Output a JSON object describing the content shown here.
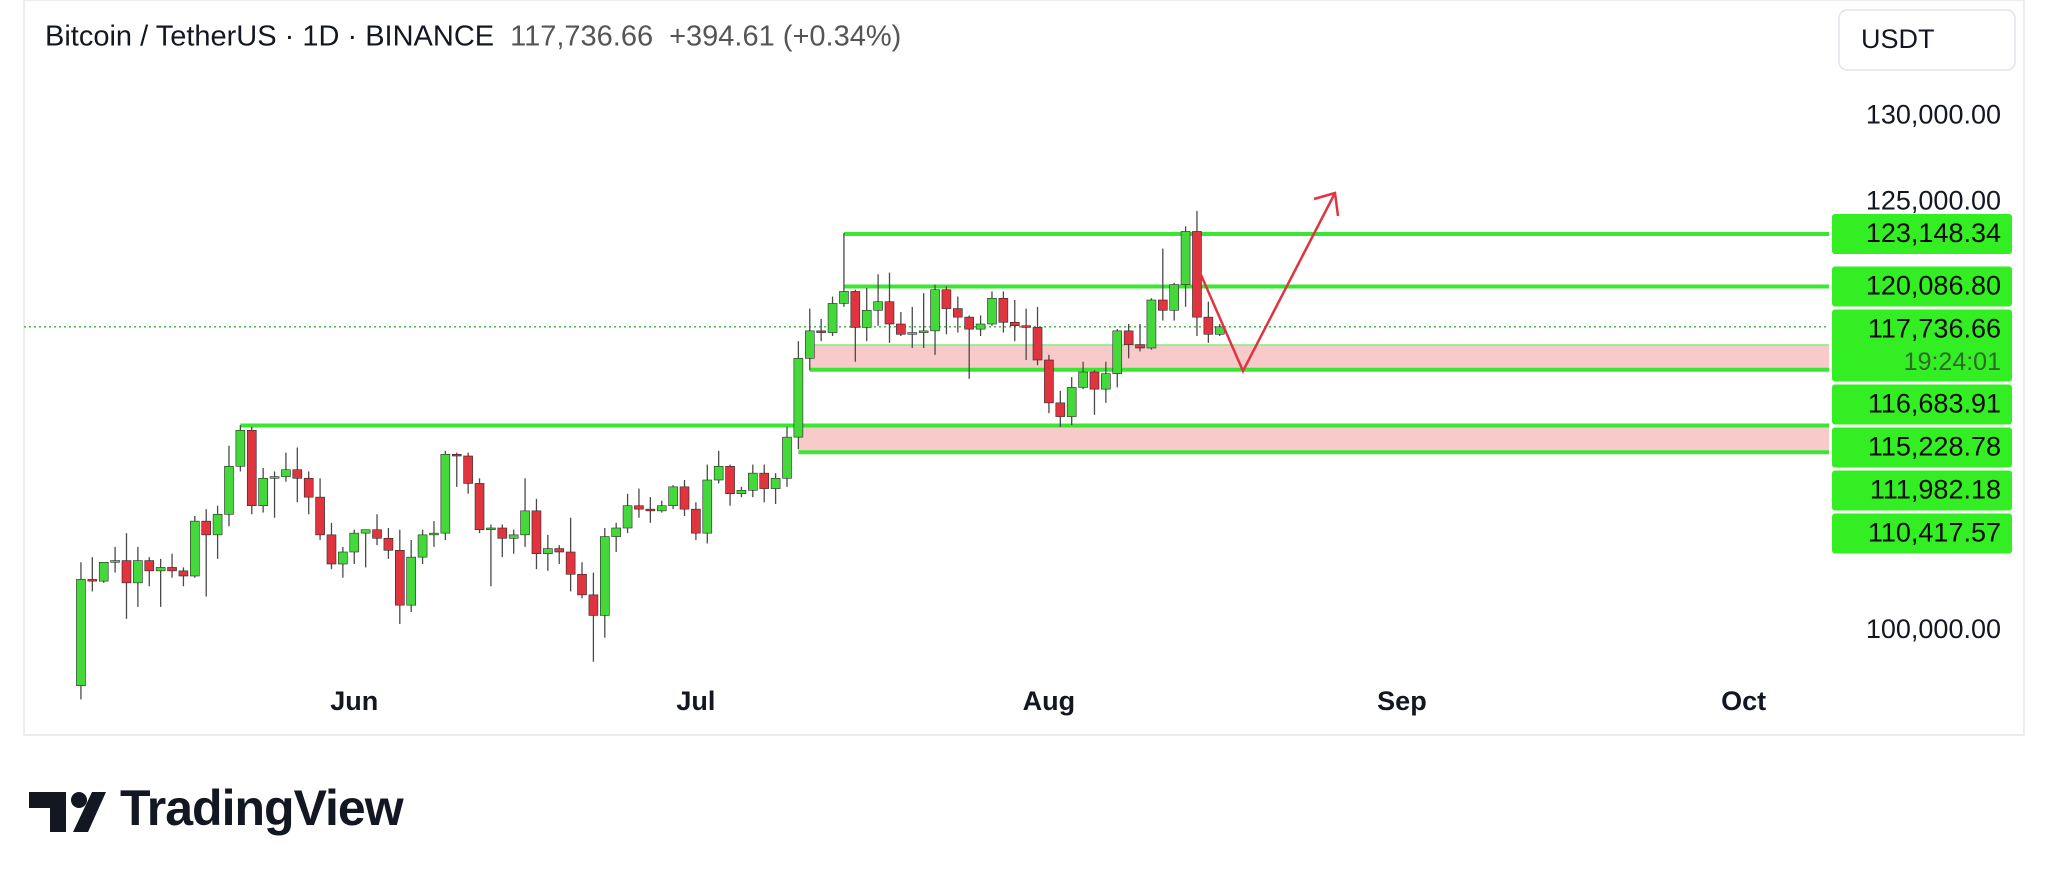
{
  "chart_data": {
    "type": "candlestick",
    "title": "Bitcoin / TetherUS · 1D · BINANCE",
    "last_price": "117,736.66",
    "change": "+394.61 (+0.34%)",
    "currency": "USDT",
    "brand": "TradingView",
    "up_color": "#45d83a",
    "down_color": "#e0343f",
    "wick_color": "#4a4a4a",
    "level_color": "#3ae632",
    "zone_color": "#f9caca",
    "tag_color": "#33ee22",
    "x": [
      128,
      129,
      130,
      131,
      132,
      133,
      134,
      135,
      136,
      137,
      138,
      139,
      140,
      141,
      142,
      143,
      144,
      145,
      146,
      147,
      148,
      149,
      150,
      151,
      152,
      153,
      154,
      155,
      156,
      157,
      158,
      159,
      160,
      161,
      162,
      163,
      164,
      165,
      166,
      167,
      168,
      169,
      170,
      171,
      172,
      173,
      174,
      175,
      176,
      177,
      178,
      179,
      180,
      181,
      182,
      183,
      184,
      185,
      186,
      187,
      188,
      189,
      190,
      191,
      192,
      193,
      194,
      195,
      196,
      197,
      198,
      199,
      200,
      201,
      202,
      203,
      204,
      205,
      206,
      207,
      208,
      209,
      210,
      211,
      212,
      213,
      214,
      215,
      216,
      217,
      218,
      219,
      220,
      221,
      222,
      223,
      224,
      225,
      226,
      227,
      228
    ],
    "open": [
      96800,
      103000,
      102900,
      104000,
      104100,
      102800,
      104100,
      103500,
      103700,
      103500,
      103200,
      106400,
      105600,
      106800,
      109600,
      111700,
      107300,
      108900,
      109000,
      109400,
      108900,
      107800,
      105600,
      103900,
      104600,
      105700,
      105900,
      105400,
      104700,
      101500,
      104300,
      105600,
      105700,
      110300,
      110200,
      108600,
      105900,
      106000,
      105400,
      105600,
      107000,
      104500,
      104800,
      104600,
      103300,
      102100,
      100900,
      105500,
      106000,
      107300,
      107100,
      107000,
      107300,
      108400,
      107100,
      105700,
      108800,
      109600,
      108000,
      108200,
      109200,
      108300,
      108900,
      111300,
      115900,
      117500,
      117400,
      119100,
      119800,
      117700,
      118700,
      119200,
      117900,
      117300,
      117400,
      117500,
      119900,
      118800,
      118300,
      117600,
      117900,
      119400,
      118000,
      117800,
      117700,
      115800,
      113300,
      112500,
      114200,
      115100,
      114100,
      115000,
      117500,
      116700,
      116500,
      119300,
      118700,
      120200,
      123300,
      118300,
      117300
    ],
    "high": [
      104000,
      104300,
      104000,
      104900,
      105700,
      104900,
      104300,
      104200,
      104500,
      103700,
      106700,
      107100,
      107300,
      110800,
      112000,
      111900,
      109500,
      109300,
      110400,
      110700,
      109300,
      108900,
      106300,
      104900,
      105900,
      105900,
      106800,
      106000,
      105900,
      105300,
      105900,
      106400,
      110500,
      110400,
      110400,
      108900,
      106200,
      106200,
      105900,
      108900,
      107700,
      105600,
      105000,
      106600,
      104000,
      103400,
      106000,
      106300,
      108000,
      108300,
      107800,
      107600,
      108500,
      108800,
      107500,
      109700,
      110500,
      109700,
      108400,
      109700,
      109700,
      109200,
      111900,
      116900,
      118800,
      118200,
      119500,
      123200,
      119900,
      120000,
      120800,
      120900,
      118600,
      118900,
      119700,
      120200,
      120100,
      119500,
      118400,
      118400,
      119800,
      119800,
      119300,
      118800,
      118900,
      116100,
      114000,
      114800,
      115700,
      115200,
      115700,
      117600,
      117900,
      117900,
      119400,
      122300,
      120300,
      123600,
      124500,
      119200,
      117900
    ],
    "low": [
      96000,
      102300,
      102800,
      103400,
      100700,
      101400,
      102600,
      101400,
      103100,
      102600,
      103100,
      102000,
      104200,
      106100,
      109300,
      106800,
      106900,
      106600,
      108700,
      107500,
      106800,
      105300,
      103600,
      103100,
      103900,
      103700,
      105000,
      104200,
      100400,
      101100,
      103900,
      104900,
      105300,
      108400,
      108000,
      105700,
      102600,
      104300,
      104500,
      104900,
      103600,
      103500,
      103900,
      102300,
      101900,
      98200,
      99600,
      104600,
      105700,
      106600,
      106300,
      106900,
      107100,
      106700,
      105300,
      105100,
      108600,
      107300,
      107800,
      107800,
      107500,
      107400,
      108400,
      110600,
      115200,
      116900,
      117200,
      118900,
      115700,
      116900,
      117800,
      116800,
      117200,
      116500,
      116500,
      116100,
      117300,
      117400,
      114700,
      117200,
      117800,
      117400,
      116900,
      115800,
      115500,
      112700,
      111900,
      112000,
      114100,
      112600,
      113300,
      114200,
      115900,
      116300,
      116400,
      118100,
      118100,
      118900,
      117200,
      116800,
      117200
    ],
    "close": [
      103000,
      102900,
      104000,
      104100,
      102800,
      104100,
      103500,
      103700,
      103500,
      103200,
      106400,
      105600,
      106800,
      109600,
      111700,
      107300,
      108900,
      109000,
      109400,
      108900,
      107800,
      105600,
      103900,
      104600,
      105700,
      105900,
      105400,
      104700,
      101500,
      104300,
      105600,
      105700,
      110300,
      110200,
      108600,
      105900,
      106000,
      105400,
      105600,
      107000,
      104500,
      104800,
      104600,
      103300,
      102100,
      100900,
      105500,
      106000,
      107300,
      107100,
      107000,
      107300,
      108400,
      107100,
      105700,
      108800,
      109600,
      108000,
      108200,
      109200,
      108300,
      108900,
      111300,
      115900,
      117500,
      117400,
      119100,
      119800,
      117700,
      118700,
      119200,
      117900,
      117300,
      117400,
      117500,
      119900,
      118800,
      118300,
      117600,
      117900,
      119400,
      118000,
      117800,
      117700,
      115800,
      113300,
      112500,
      114200,
      115100,
      114100,
      115000,
      117500,
      116700,
      116500,
      119300,
      118700,
      120200,
      123300,
      118300,
      117300,
      117736.66
    ],
    "xlim": [
      123,
      281.5
    ],
    "xticks": [
      {
        "value": 152,
        "label": "Jun"
      },
      {
        "value": 182,
        "label": "Jul"
      },
      {
        "value": 213,
        "label": "Aug"
      },
      {
        "value": 244,
        "label": "Sep"
      },
      {
        "value": 274,
        "label": "Oct"
      }
    ],
    "ylim": [
      97600,
      136800
    ],
    "yticks": [
      {
        "value": 100000,
        "label": "100,000.00"
      },
      {
        "value": 125000,
        "label": "125,000.00"
      },
      {
        "value": 130000,
        "label": "130,000.00"
      }
    ],
    "current": {
      "value": 117736.66,
      "label": "117,736.66",
      "countdown": "19:24:01"
    },
    "levels": [
      {
        "value": 123148.34,
        "label": "123,148.34",
        "from": 195
      },
      {
        "value": 120086.8,
        "label": "120,086.80",
        "from": 195
      }
    ],
    "zones": [
      {
        "top": {
          "value": 116683.91,
          "label": "116,683.91",
          "from": 192
        },
        "bottom": {
          "value": 115228.78,
          "label": "115,228.78",
          "from": 192
        }
      },
      {
        "top": {
          "value": 111982.18,
          "label": "111,982.18",
          "from": 142
        },
        "bottom": {
          "value": 110417.57,
          "label": "110,417.57",
          "from": 191
        }
      }
    ]
  }
}
